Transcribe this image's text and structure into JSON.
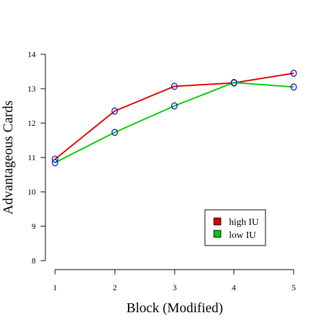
{
  "chart_data": {
    "type": "line",
    "x": [
      1,
      2,
      3,
      4,
      5
    ],
    "xlabel": "Block (Modified)",
    "ylabel": "Advantageous Cards",
    "xlim": [
      1,
      5
    ],
    "ylim": [
      8,
      14
    ],
    "xticks": [
      "1",
      "2",
      "3",
      "4",
      "5"
    ],
    "yticks": [
      "8",
      "9",
      "10",
      "11",
      "12",
      "13",
      "14"
    ],
    "grid": false,
    "legend_position": "bottom-right",
    "marker": "open-circle",
    "marker_color": "#0000cc",
    "series": [
      {
        "name": "high IU",
        "color": "#dd0000",
        "values": [
          10.95,
          12.35,
          13.07,
          13.17,
          13.45
        ]
      },
      {
        "name": "low IU",
        "color": "#00cc00",
        "values": [
          10.85,
          11.73,
          12.5,
          13.18,
          13.05
        ]
      }
    ]
  }
}
